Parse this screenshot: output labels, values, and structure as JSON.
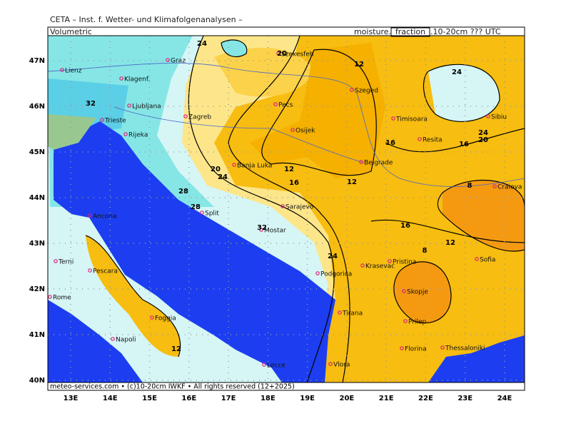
{
  "header": {
    "title": "CETA – Inst. f. Wetter- und Klimafolgenanalysen –",
    "left_label": "Volumetric",
    "right_prefix": "moisture.",
    "right_boxed": "fraction",
    "right_suffix": ".10-20cm ??? UTC",
    "footer": "meteo-services.com • (c)10-20cm IWKF • All rights reserved (12+2025)"
  },
  "axes": {
    "latitudes": [
      "47N",
      "46N",
      "45N",
      "44N",
      "43N",
      "42N",
      "41N",
      "40N"
    ],
    "longitudes": [
      "13E",
      "14E",
      "15E",
      "16E",
      "17E",
      "18E",
      "19E",
      "20E",
      "21E",
      "22E",
      "23E",
      "24E"
    ]
  },
  "cities": [
    "Lienz",
    "Klagenf.",
    "Graz",
    "Szekesfeh",
    "Szeged",
    "Ljubljana",
    "Zagreb",
    "Pecs",
    "Timisoara",
    "Sibiu",
    "Trieste",
    "Osijek",
    "Resita",
    "Rijeka",
    "Banja Luka",
    "Belgrade",
    "Craiova",
    "Sarajevo",
    "Split",
    "Ancona",
    "Mostar",
    "Terni",
    "Pescara",
    "Pristina",
    "Sofia",
    "Podgorica",
    "Krasevac",
    "Skopje",
    "Rome",
    "Foggia",
    "Tirana",
    "Prilep",
    "Napoli",
    "Thessaloniki",
    "Florina",
    "Lecce",
    "Vlora"
  ],
  "contour_labels": [
    24,
    20,
    12,
    24,
    32,
    16,
    24,
    20,
    16,
    12,
    20,
    24,
    16,
    12,
    28,
    28,
    8,
    32,
    16,
    12,
    24,
    8,
    12
  ]
}
